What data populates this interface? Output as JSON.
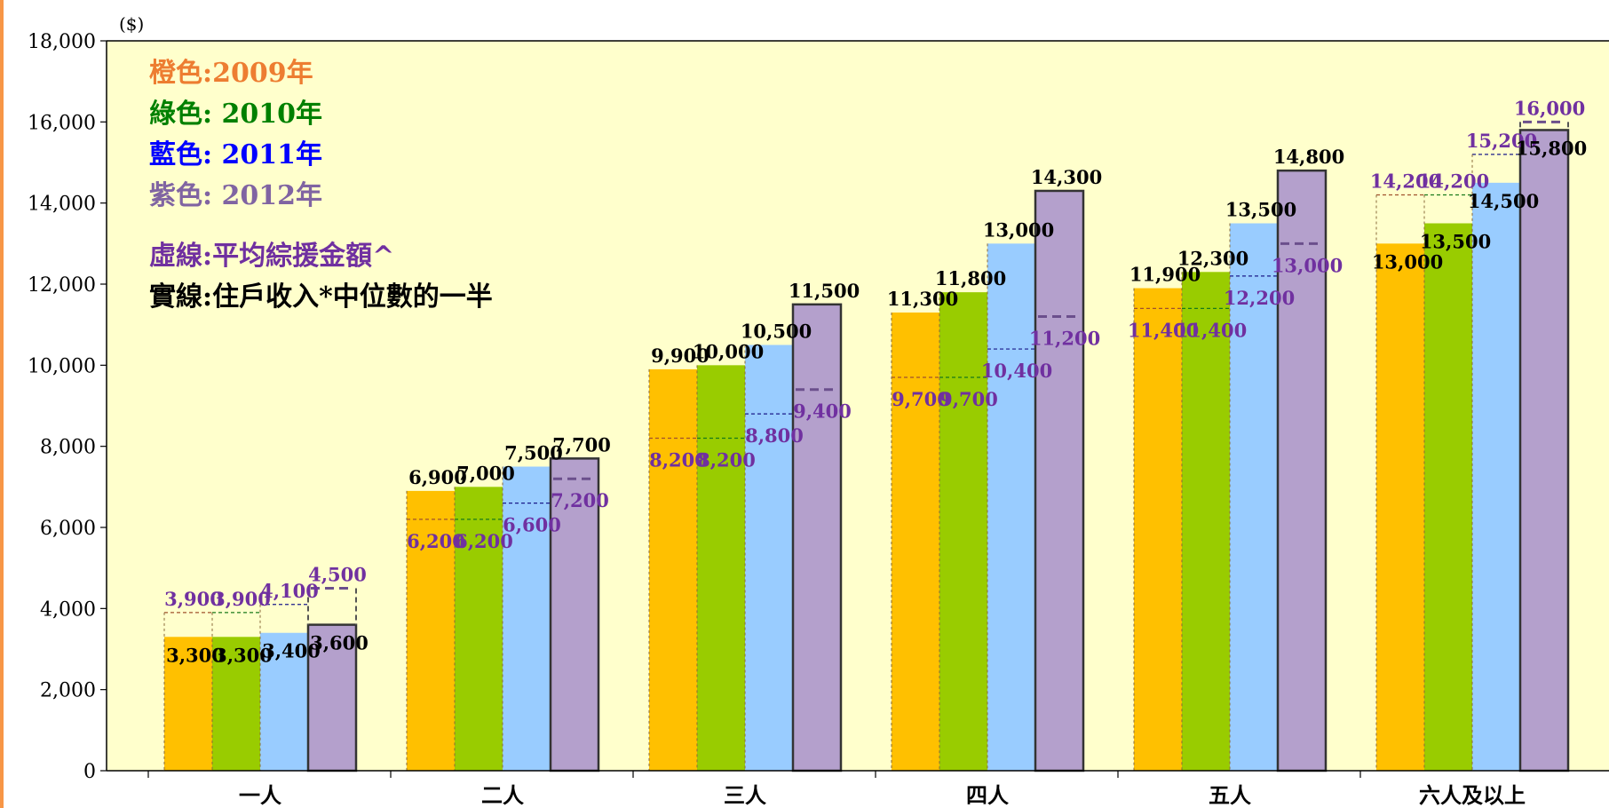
{
  "chart_data": {
    "type": "bar",
    "title": "",
    "unit_label": "($)",
    "xlabel": "",
    "ylabel": "",
    "ylim": [
      0,
      18000
    ],
    "y_ticks": [
      "0",
      "2,000",
      "4,000",
      "6,000",
      "8,000",
      "10,000",
      "12,000",
      "14,000",
      "16,000",
      "18,000"
    ],
    "grid": false,
    "categories": [
      "一人",
      "二人",
      "三人",
      "四人",
      "五人",
      "六人及以上"
    ],
    "series": [
      {
        "legend": "2009年",
        "color": "#FFC000",
        "median_half": [
          3300,
          6900,
          9900,
          11300,
          11900,
          13000
        ],
        "avg_cssa": [
          3900,
          6200,
          8200,
          9700,
          11400,
          14200
        ],
        "median_labels": [
          "3,300",
          "6,900",
          "9,900",
          "11,300",
          "11,900",
          "13,000"
        ],
        "avg_labels": [
          "3,900",
          "6,200",
          "8,200",
          "9,700",
          "11,400",
          "14,200"
        ]
      },
      {
        "legend": "2010年",
        "color": "#99CC00",
        "median_half": [
          3300,
          7000,
          10000,
          11800,
          12300,
          13500
        ],
        "avg_cssa": [
          3900,
          6200,
          8200,
          9700,
          11400,
          14200
        ],
        "median_labels": [
          "3,300",
          "7,000",
          "10,000",
          "11,800",
          "12,300",
          "13,500"
        ],
        "avg_labels": [
          "3,900",
          "6,200",
          "8,200",
          "9,700",
          "11,400",
          "14,200"
        ]
      },
      {
        "legend": "2011年",
        "color": "#99CCFF",
        "median_half": [
          3400,
          7500,
          10500,
          13000,
          13500,
          14500
        ],
        "avg_cssa": [
          4100,
          6600,
          8800,
          10400,
          12200,
          15200
        ],
        "median_labels": [
          "3,400",
          "7,500",
          "10,500",
          "13,000",
          "13,500",
          "14,500"
        ],
        "avg_labels": [
          "4,100",
          "6,600",
          "8,800",
          "10,400",
          "12,200",
          "15,200"
        ]
      },
      {
        "legend": "2012年",
        "color": "#B4A0CC",
        "median_half": [
          3600,
          7700,
          11500,
          14300,
          14800,
          15800
        ],
        "avg_cssa": [
          4500,
          7200,
          9400,
          11200,
          13000,
          16000
        ],
        "median_labels": [
          "3,600",
          "7,700",
          "11,500",
          "14,300",
          "14,800",
          "15,800"
        ],
        "avg_labels": [
          "4,500",
          "7,200",
          "9,400",
          "11,200",
          "13,000",
          "16,000"
        ]
      }
    ],
    "legend": {
      "placement": "top-left",
      "items": [
        {
          "prefix": "橙色:",
          "text": "2009年",
          "color": "#ED7D31"
        },
        {
          "prefix": "綠色: ",
          "text": "2010年",
          "color": "#008000"
        },
        {
          "prefix": "藍色: ",
          "text": "2011年",
          "color": "#0000FF"
        },
        {
          "prefix": "紫色: ",
          "text": "2012年",
          "color": "#8064A2"
        }
      ],
      "dashed_note": "虛線:平均綜援金額^",
      "solid_note": "實線:住戶收入*中位數的一半",
      "dashed_color": "#7030A0",
      "solid_color": "#000000"
    },
    "colors": {
      "plot_background": "#FFFFCC",
      "avg_label_color": "#7030A0",
      "median_label_color": "#000000",
      "axis_color": "#000000",
      "left_edge_accent": "#F79646"
    }
  }
}
